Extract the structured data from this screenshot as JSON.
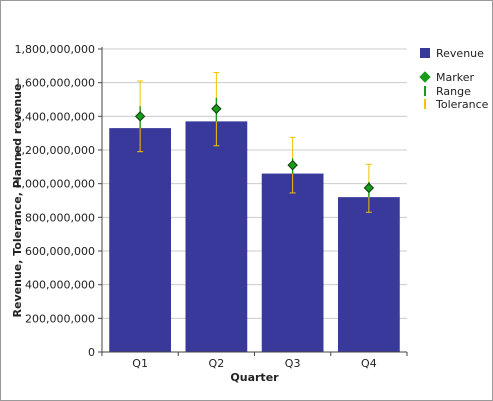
{
  "chart_data": {
    "type": "bar",
    "categories": [
      "Q1",
      "Q2",
      "Q3",
      "Q4"
    ],
    "series": [
      {
        "name": "Revenue",
        "values": [
          1330000000,
          1370000000,
          1060000000,
          920000000
        ]
      }
    ],
    "markers": [
      1400000000,
      1445000000,
      1110000000,
      975000000
    ],
    "range": [
      {
        "low": 1330000000,
        "high": 1460000000
      },
      {
        "low": 1370000000,
        "high": 1510000000
      },
      {
        "low": 1060000000,
        "high": 1150000000
      },
      {
        "low": 920000000,
        "high": 1010000000
      }
    ],
    "tolerance": [
      {
        "low": 1190000000,
        "high": 1610000000
      },
      {
        "low": 1225000000,
        "high": 1660000000
      },
      {
        "low": 945000000,
        "high": 1275000000
      },
      {
        "low": 830000000,
        "high": 1115000000
      }
    ],
    "y_ticks": [
      "0",
      "200,000,000",
      "400,000,000",
      "600,000,000",
      "800,000,000",
      "1,000,000,000",
      "1,200,000,000",
      "1,400,000,000",
      "1,600,000,000",
      "1,800,000,000"
    ],
    "title": "",
    "xlabel": "Quarter",
    "ylabel": "Revenue, Tolerance, Planned revenue",
    "ylim": [
      0,
      1800000000
    ],
    "grid": true,
    "legend_position": "right",
    "legend": [
      {
        "label": "Revenue",
        "kind": "bar"
      },
      {
        "label": "Marker",
        "kind": "diamond"
      },
      {
        "label": "Range",
        "kind": "range"
      },
      {
        "label": "Tolerance",
        "kind": "tolerance"
      }
    ],
    "colors": {
      "bar": "#38399a",
      "marker_fill": "#1a9a1a",
      "marker_stroke": "#0b3d0b",
      "range": "#1a9a1a",
      "tolerance": "#f2c200",
      "grid": "#cccccc",
      "axis": "#444444"
    }
  }
}
